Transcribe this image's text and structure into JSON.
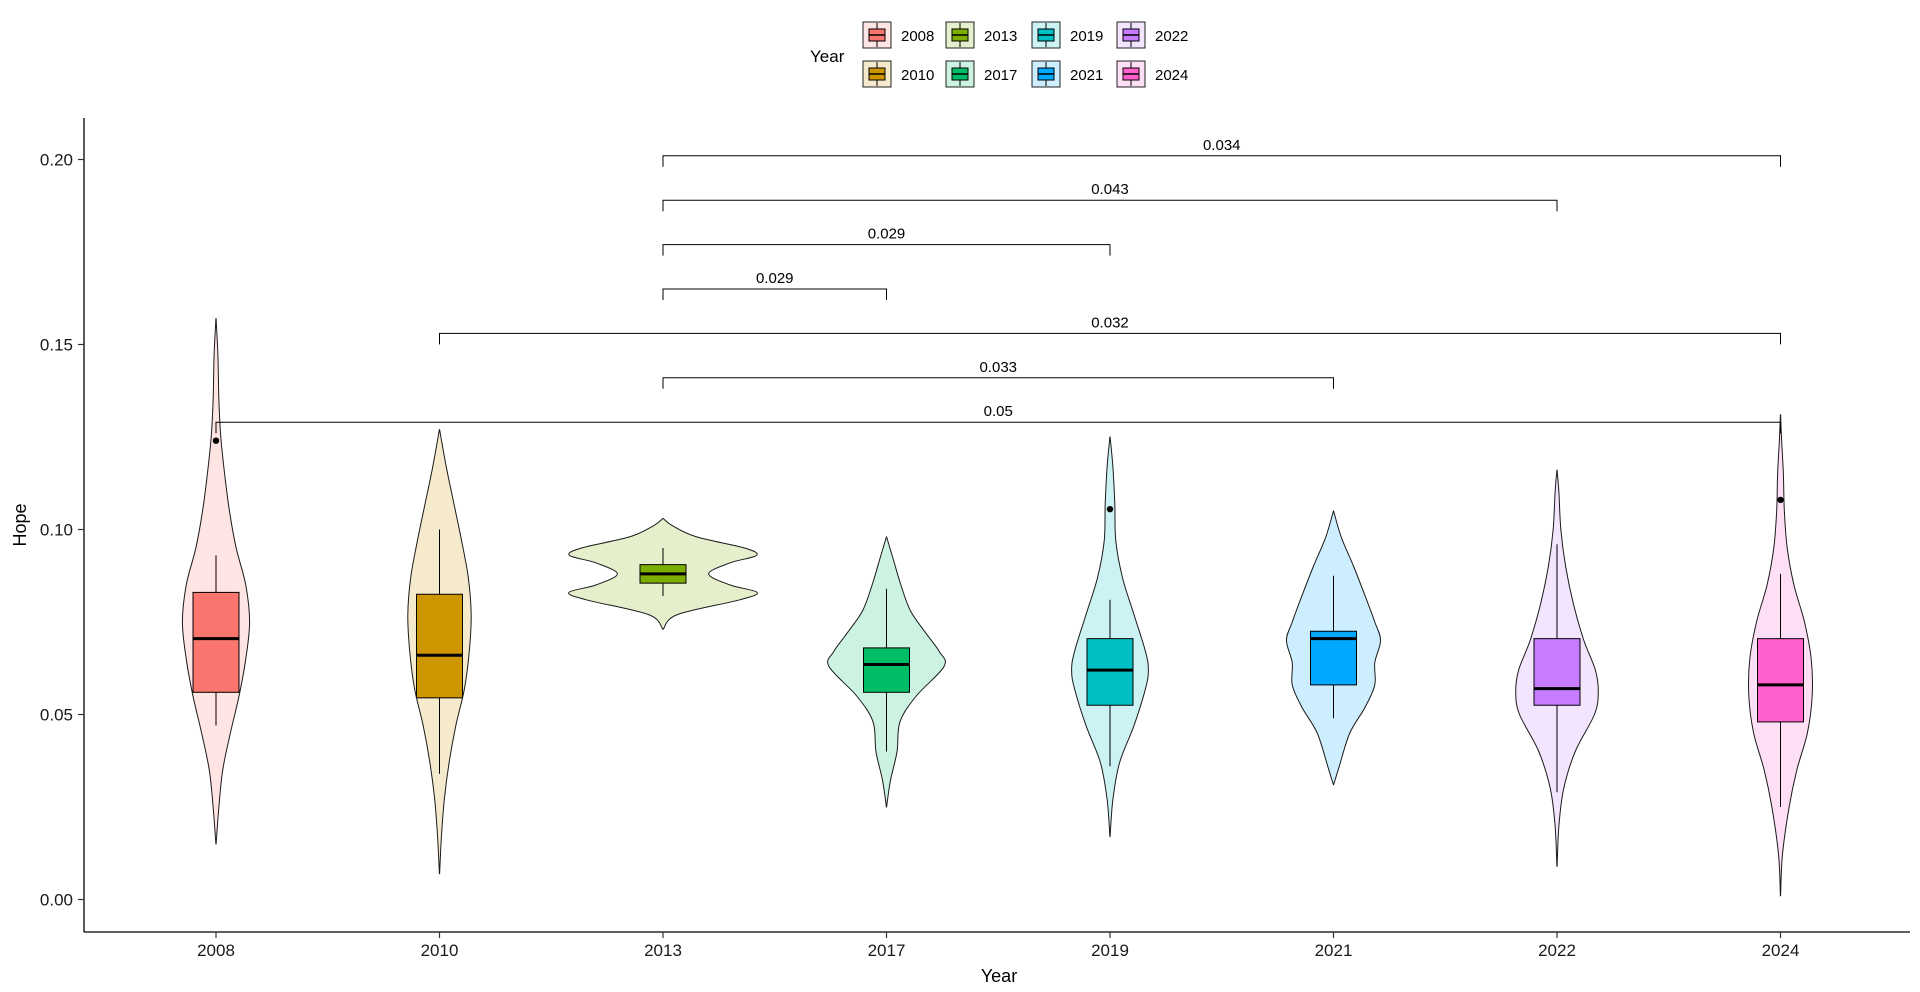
{
  "chart_data": {
    "type": "violin",
    "xlabel": "Year",
    "ylabel": "Hope",
    "ylim": [
      -0.009,
      0.211
    ],
    "yticks": [
      "0.00",
      "0.05",
      "0.10",
      "0.15",
      "0.20"
    ],
    "ytick_values": [
      0.0,
      0.05,
      0.1,
      0.15,
      0.2
    ],
    "legend": {
      "title": "Year",
      "placement": "top",
      "entries": [
        {
          "label": "2008",
          "color": "#F8766D"
        },
        {
          "label": "2013",
          "color": "#7CAE00"
        },
        {
          "label": "2019",
          "color": "#00BFC4"
        },
        {
          "label": "2022",
          "color": "#C77CFF"
        },
        {
          "label": "2010",
          "color": "#CD9600"
        },
        {
          "label": "2017",
          "color": "#00BE67"
        },
        {
          "label": "2021",
          "color": "#00A9FF"
        },
        {
          "label": "2024",
          "color": "#FF61CC"
        }
      ]
    },
    "categories": [
      "2008",
      "2010",
      "2013",
      "2017",
      "2019",
      "2021",
      "2022",
      "2024"
    ],
    "groups": [
      {
        "category": "2008",
        "color": "#F8766D",
        "min": 0.047,
        "q1": 0.056,
        "median": 0.0705,
        "q3": 0.083,
        "max": 0.093,
        "outliers": [
          0.124
        ],
        "violin": {
          "ymin": 0.015,
          "ymax": 0.157,
          "profile": [
            [
              0.015,
              0.002
            ],
            [
              0.025,
              0.06
            ],
            [
              0.035,
              0.14
            ],
            [
              0.045,
              0.3
            ],
            [
              0.055,
              0.48
            ],
            [
              0.065,
              0.62
            ],
            [
              0.075,
              0.7
            ],
            [
              0.085,
              0.62
            ],
            [
              0.095,
              0.42
            ],
            [
              0.105,
              0.28
            ],
            [
              0.115,
              0.18
            ],
            [
              0.125,
              0.1
            ],
            [
              0.135,
              0.06
            ],
            [
              0.147,
              0.04
            ],
            [
              0.157,
              0.002
            ]
          ]
        }
      },
      {
        "category": "2010",
        "color": "#CD9600",
        "min": 0.034,
        "q1": 0.0545,
        "median": 0.066,
        "q3": 0.0825,
        "max": 0.1,
        "outliers": [],
        "violin": {
          "ymin": 0.007,
          "ymax": 0.127,
          "profile": [
            [
              0.007,
              0.002
            ],
            [
              0.017,
              0.04
            ],
            [
              0.027,
              0.1
            ],
            [
              0.037,
              0.2
            ],
            [
              0.047,
              0.34
            ],
            [
              0.057,
              0.52
            ],
            [
              0.067,
              0.62
            ],
            [
              0.077,
              0.66
            ],
            [
              0.087,
              0.6
            ],
            [
              0.097,
              0.46
            ],
            [
              0.107,
              0.3
            ],
            [
              0.117,
              0.14
            ],
            [
              0.127,
              0.002
            ]
          ]
        }
      },
      {
        "category": "2013",
        "color": "#7CAE00",
        "min": 0.082,
        "q1": 0.0855,
        "median": 0.088,
        "q3": 0.0905,
        "max": 0.095,
        "outliers": [],
        "violin": {
          "ymin": 0.073,
          "ymax": 0.103,
          "profile": [
            [
              0.073,
              0.002
            ],
            [
              0.077,
              0.3
            ],
            [
              0.081,
              1.6
            ],
            [
              0.083,
              1.96
            ],
            [
              0.085,
              1.4
            ],
            [
              0.088,
              0.95
            ],
            [
              0.091,
              1.4
            ],
            [
              0.093,
              1.95
            ],
            [
              0.095,
              1.7
            ],
            [
              0.098,
              0.7
            ],
            [
              0.101,
              0.2
            ],
            [
              0.103,
              0.002
            ]
          ]
        }
      },
      {
        "category": "2017",
        "color": "#00BE67",
        "min": 0.04,
        "q1": 0.056,
        "median": 0.0635,
        "q3": 0.068,
        "max": 0.084,
        "outliers": [],
        "violin": {
          "ymin": 0.025,
          "ymax": 0.098,
          "profile": [
            [
              0.025,
              0.002
            ],
            [
              0.032,
              0.08
            ],
            [
              0.04,
              0.22
            ],
            [
              0.048,
              0.28
            ],
            [
              0.055,
              0.62
            ],
            [
              0.063,
              1.2
            ],
            [
              0.067,
              1.1
            ],
            [
              0.072,
              0.82
            ],
            [
              0.078,
              0.5
            ],
            [
              0.085,
              0.3
            ],
            [
              0.092,
              0.14
            ],
            [
              0.098,
              0.002
            ]
          ]
        }
      },
      {
        "category": "2019",
        "color": "#00BFC4",
        "min": 0.036,
        "q1": 0.0525,
        "median": 0.062,
        "q3": 0.0705,
        "max": 0.081,
        "outliers": [
          0.1055
        ],
        "violin": {
          "ymin": 0.017,
          "ymax": 0.125,
          "profile": [
            [
              0.017,
              0.002
            ],
            [
              0.027,
              0.06
            ],
            [
              0.037,
              0.2
            ],
            [
              0.047,
              0.5
            ],
            [
              0.057,
              0.74
            ],
            [
              0.062,
              0.8
            ],
            [
              0.067,
              0.74
            ],
            [
              0.077,
              0.5
            ],
            [
              0.087,
              0.26
            ],
            [
              0.097,
              0.12
            ],
            [
              0.107,
              0.1
            ],
            [
              0.117,
              0.06
            ],
            [
              0.125,
              0.002
            ]
          ]
        }
      },
      {
        "category": "2021",
        "color": "#00A9FF",
        "min": 0.049,
        "q1": 0.058,
        "median": 0.0705,
        "q3": 0.0725,
        "max": 0.0875,
        "outliers": [],
        "violin": {
          "ymin": 0.031,
          "ymax": 0.105,
          "profile": [
            [
              0.031,
              0.002
            ],
            [
              0.036,
              0.12
            ],
            [
              0.045,
              0.34
            ],
            [
              0.052,
              0.66
            ],
            [
              0.058,
              0.86
            ],
            [
              0.064,
              0.86
            ],
            [
              0.07,
              0.98
            ],
            [
              0.075,
              0.86
            ],
            [
              0.082,
              0.66
            ],
            [
              0.09,
              0.42
            ],
            [
              0.098,
              0.16
            ],
            [
              0.105,
              0.002
            ]
          ]
        }
      },
      {
        "category": "2022",
        "color": "#C77CFF",
        "min": 0.029,
        "q1": 0.0525,
        "median": 0.057,
        "q3": 0.0705,
        "max": 0.096,
        "outliers": [],
        "violin": {
          "ymin": 0.009,
          "ymax": 0.116,
          "profile": [
            [
              0.009,
              0.002
            ],
            [
              0.02,
              0.04
            ],
            [
              0.03,
              0.14
            ],
            [
              0.04,
              0.38
            ],
            [
              0.05,
              0.78
            ],
            [
              0.056,
              0.86
            ],
            [
              0.062,
              0.8
            ],
            [
              0.07,
              0.56
            ],
            [
              0.08,
              0.34
            ],
            [
              0.09,
              0.18
            ],
            [
              0.1,
              0.08
            ],
            [
              0.11,
              0.04
            ],
            [
              0.116,
              0.002
            ]
          ]
        }
      },
      {
        "category": "2024",
        "color": "#FF61CC",
        "min": 0.025,
        "q1": 0.048,
        "median": 0.058,
        "q3": 0.0705,
        "max": 0.088,
        "outliers": [
          0.108
        ],
        "violin": {
          "ymin": 0.001,
          "ymax": 0.131,
          "profile": [
            [
              0.001,
              0.002
            ],
            [
              0.012,
              0.04
            ],
            [
              0.025,
              0.18
            ],
            [
              0.035,
              0.34
            ],
            [
              0.045,
              0.56
            ],
            [
              0.055,
              0.66
            ],
            [
              0.065,
              0.64
            ],
            [
              0.075,
              0.5
            ],
            [
              0.085,
              0.28
            ],
            [
              0.095,
              0.14
            ],
            [
              0.105,
              0.08
            ],
            [
              0.115,
              0.06
            ],
            [
              0.125,
              0.02
            ],
            [
              0.131,
              0.002
            ]
          ]
        }
      }
    ],
    "comparisons": [
      {
        "from": "2008",
        "to": "2024",
        "y": 0.129,
        "label": "0.05"
      },
      {
        "from": "2013",
        "to": "2021",
        "y": 0.141,
        "label": "0.033"
      },
      {
        "from": "2010",
        "to": "2024",
        "y": 0.153,
        "label": "0.032"
      },
      {
        "from": "2013",
        "to": "2017",
        "y": 0.165,
        "label": "0.029"
      },
      {
        "from": "2013",
        "to": "2019",
        "y": 0.177,
        "label": "0.029"
      },
      {
        "from": "2013",
        "to": "2022",
        "y": 0.189,
        "label": "0.043"
      },
      {
        "from": "2013",
        "to": "2024",
        "y": 0.201,
        "label": "0.034"
      }
    ]
  }
}
